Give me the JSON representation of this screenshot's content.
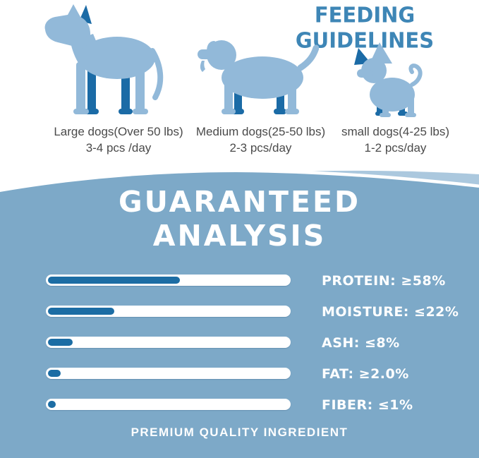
{
  "header": {
    "title": "FEEDING GUIDELINES"
  },
  "feeding": {
    "items": [
      {
        "dog": "large-dog",
        "label": "Large dogs(Over 50 lbs)",
        "amount": "3-4 pcs /day"
      },
      {
        "dog": "medium-dog",
        "label": "Medium dogs(25-50 lbs)",
        "amount": "2-3 pcs/day"
      },
      {
        "dog": "small-dog",
        "label": "small dogs(4-25 lbs)",
        "amount": "1-2 pcs/day"
      }
    ]
  },
  "analysis": {
    "title_line1": "GUARANTEED",
    "title_line2": "ANALYSIS",
    "footer": "PREMIUM QUALITY INGREDIENT"
  },
  "chart_data": {
    "type": "bar",
    "orientation": "horizontal",
    "title": "GUARANTEED ANALYSIS",
    "categories": [
      "PROTEIN",
      "MOISTURE",
      "ASH",
      "FAT",
      "FIBER"
    ],
    "labels": [
      "PROTEIN: ≥58%",
      "MOISTURE: ≤22%",
      "ASH: ≤8%",
      "FAT: ≥2.0%",
      "FIBER: ≤1%"
    ],
    "qualifiers": [
      "≥",
      "≤",
      "≤",
      "≥",
      "≤"
    ],
    "values": [
      58,
      22,
      8,
      2.0,
      1
    ],
    "unit": "%",
    "bar_fill_fraction": [
      0.54,
      0.27,
      0.1,
      0.053,
      0.032
    ],
    "track_color": "#ffffff",
    "fill_color": "#1c6da4",
    "legend": "none",
    "grid": false
  },
  "colors": {
    "accent_blue": "#3e86b6",
    "section_bg": "#7da9c8",
    "wave_light": "#abc8de",
    "bar_fill": "#1c6da4",
    "dog_light": "#92b9d9",
    "dog_dark": "#1b6ba6",
    "text_gray": "#4a4a4a",
    "text_white": "#ffffff"
  }
}
